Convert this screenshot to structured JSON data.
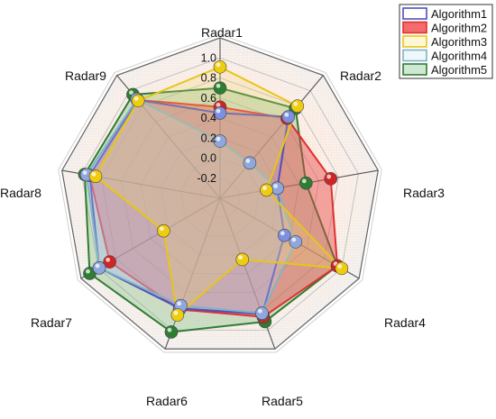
{
  "chart_data": {
    "type": "radar",
    "axes": [
      "Radar1",
      "Radar2",
      "Radar3",
      "Radar4",
      "Radar5",
      "Radar6",
      "Radar7",
      "Radar8",
      "Radar9"
    ],
    "r_ticks": [
      -0.2,
      0.0,
      0.2,
      0.4,
      0.6,
      0.8,
      1.0
    ],
    "r_tick_labels": [
      "-0.2",
      "0.0",
      "0.2",
      "0.4",
      "0.6",
      "0.8",
      "1.0"
    ],
    "rlim": [
      -0.4,
      1.2
    ],
    "legend_position": "top-right",
    "series": [
      {
        "name": "Algorithm1",
        "color": "#4f4fbf",
        "marker": "#7f8fe0",
        "values": [
          0.45,
          0.66,
          0.18,
          0.34,
          0.83,
          0.77,
          0.99,
          0.92,
          0.88
        ]
      },
      {
        "name": "Algorithm2",
        "color": "#e03030",
        "marker": "#d02525",
        "values": [
          0.51,
          0.64,
          0.72,
          0.95,
          0.86,
          0.78,
          0.87,
          0.92,
          0.88
        ]
      },
      {
        "name": "Algorithm3",
        "color": "#e6c619",
        "marker": "#f0cc10",
        "values": [
          0.91,
          0.8,
          0.07,
          1.0,
          0.25,
          0.84,
          0.25,
          0.86,
          0.87
        ]
      },
      {
        "name": "Algorithm4",
        "color": "#7fb3c8",
        "marker": "#8fa6df",
        "values": [
          0.17,
          0.06,
          0.18,
          0.47,
          0.82,
          0.74,
          0.99,
          0.95,
          0.89
        ]
      },
      {
        "name": "Algorithm5",
        "color": "#2e7d32",
        "marker": "#2e7d32",
        "values": [
          0.7,
          0.77,
          0.47,
          0.95,
          0.91,
          1.02,
          1.1,
          0.97,
          0.95
        ]
      }
    ]
  }
}
